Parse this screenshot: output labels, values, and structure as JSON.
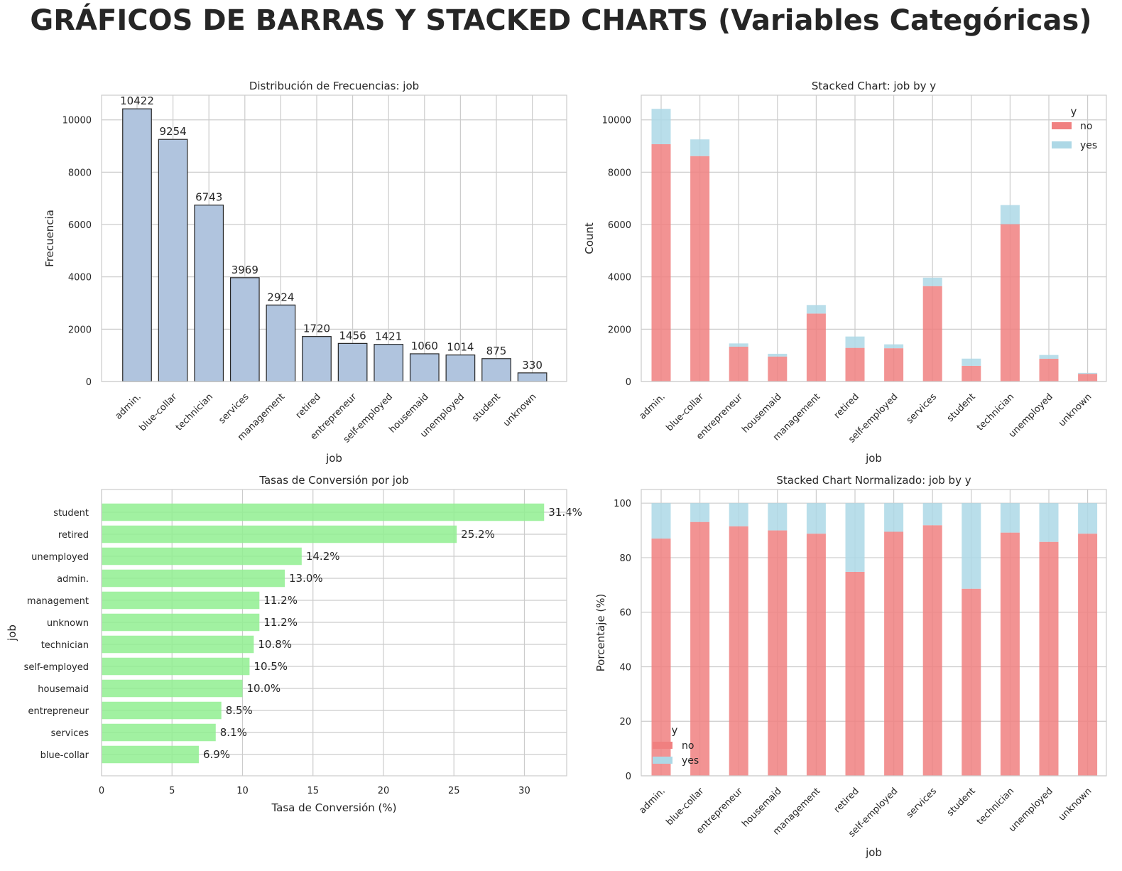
{
  "page_title": "GRÁFICOS DE BARRAS Y STACKED CHARTS (Variables Categóricas)",
  "colors": {
    "freq_bar": "#b0c4de",
    "freq_edge": "#262626",
    "no": "#f08080",
    "yes": "#add8e6",
    "conv": "#90ee90",
    "grid": "#cccccc",
    "axis": "#cccccc"
  },
  "chart_data": [
    {
      "id": "freq",
      "type": "bar",
      "title": "Distribución de Frecuencias: job",
      "xlabel": "job",
      "ylabel": "Frecuencia",
      "categories": [
        "admin.",
        "blue-collar",
        "technician",
        "services",
        "management",
        "retired",
        "entrepreneur",
        "self-employed",
        "housemaid",
        "unemployed",
        "student",
        "unknown"
      ],
      "values": [
        10422,
        9254,
        6743,
        3969,
        2924,
        1720,
        1456,
        1421,
        1060,
        1014,
        875,
        330
      ],
      "value_labels": [
        "10422",
        "9254",
        "6743",
        "3969",
        "2924",
        "1720",
        "1456",
        "1421",
        "1060",
        "1014",
        "875",
        "330"
      ],
      "ylim": [
        0,
        10943
      ],
      "yticks": [
        0,
        2000,
        4000,
        6000,
        8000,
        10000
      ],
      "ytick_labels": [
        "0",
        "2000",
        "4000",
        "6000",
        "8000",
        "10000"
      ],
      "grid": true
    },
    {
      "id": "stacked",
      "type": "bar",
      "stacked": true,
      "title": "Stacked Chart: job by y",
      "xlabel": "job",
      "ylabel": "Count",
      "categories": [
        "admin.",
        "blue-collar",
        "entrepreneur",
        "housemaid",
        "management",
        "retired",
        "self-employed",
        "services",
        "student",
        "technician",
        "unemployed",
        "unknown"
      ],
      "series": [
        {
          "name": "no",
          "values": [
            9070,
            8616,
            1332,
            954,
            2596,
            1286,
            1272,
            3646,
            600,
            6013,
            870,
            293
          ]
        },
        {
          "name": "yes",
          "values": [
            1352,
            638,
            124,
            106,
            328,
            434,
            149,
            323,
            275,
            730,
            144,
            37
          ]
        }
      ],
      "legend": {
        "title": "y",
        "entries": [
          "no",
          "yes"
        ],
        "position": "top-right"
      },
      "ylim": [
        0,
        10943
      ],
      "yticks": [
        0,
        2000,
        4000,
        6000,
        8000,
        10000
      ],
      "ytick_labels": [
        "0",
        "2000",
        "4000",
        "6000",
        "8000",
        "10000"
      ],
      "grid": true
    },
    {
      "id": "conv",
      "type": "bar",
      "orientation": "horizontal",
      "title": "Tasas de Conversión por job",
      "xlabel": "Tasa de Conversión (%)",
      "ylabel": "job",
      "categories": [
        "student",
        "retired",
        "unemployed",
        "admin.",
        "management",
        "unknown",
        "technician",
        "self-employed",
        "housemaid",
        "entrepreneur",
        "services",
        "blue-collar"
      ],
      "values": [
        31.4,
        25.2,
        14.2,
        13.0,
        11.2,
        11.2,
        10.8,
        10.5,
        10.0,
        8.5,
        8.1,
        6.9
      ],
      "value_labels": [
        "31.4%",
        "25.2%",
        "14.2%",
        "13.0%",
        "11.2%",
        "11.2%",
        "10.8%",
        "10.5%",
        "10.0%",
        "8.5%",
        "8.1%",
        "6.9%"
      ],
      "xlim": [
        0,
        33
      ],
      "xticks": [
        0,
        5,
        10,
        15,
        20,
        25,
        30
      ],
      "xtick_labels": [
        "0",
        "5",
        "10",
        "15",
        "20",
        "25",
        "30"
      ],
      "grid": true
    },
    {
      "id": "norm",
      "type": "bar",
      "stacked": true,
      "title": "Stacked Chart Normalizado: job by y",
      "xlabel": "job",
      "ylabel": "Porcentaje (%)",
      "categories": [
        "admin.",
        "blue-collar",
        "entrepreneur",
        "housemaid",
        "management",
        "retired",
        "self-employed",
        "services",
        "student",
        "technician",
        "unemployed",
        "unknown"
      ],
      "series": [
        {
          "name": "no",
          "values": [
            87.0,
            93.1,
            91.5,
            90.0,
            88.8,
            74.8,
            89.5,
            91.9,
            68.6,
            89.2,
            85.8,
            88.8
          ]
        },
        {
          "name": "yes",
          "values": [
            13.0,
            6.9,
            8.5,
            10.0,
            11.2,
            25.2,
            10.5,
            8.1,
            31.4,
            10.8,
            14.2,
            11.2
          ]
        }
      ],
      "legend": {
        "title": "y",
        "entries": [
          "no",
          "yes"
        ],
        "position": "bottom-left"
      },
      "ylim": [
        0,
        105
      ],
      "yticks": [
        0,
        20,
        40,
        60,
        80,
        100
      ],
      "ytick_labels": [
        "0",
        "20",
        "40",
        "60",
        "80",
        "100"
      ],
      "grid": true
    }
  ]
}
